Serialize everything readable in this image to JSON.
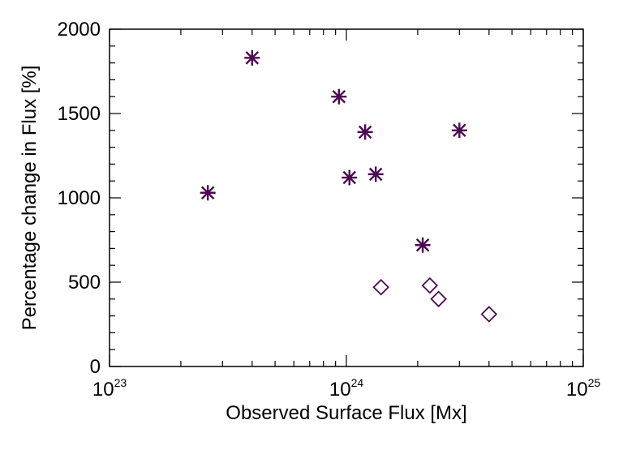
{
  "chart_data": {
    "type": "scatter",
    "xlabel": "Observed Surface Flux [Mx]",
    "ylabel": "Percentage change in Flux [%]",
    "x_scale": "log",
    "xlim": [
      1e+23,
      1e+25
    ],
    "ylim": [
      0,
      2000
    ],
    "x_ticks": [
      {
        "value": 1e+23,
        "base": "10",
        "exp": "23"
      },
      {
        "value": 1e+24,
        "base": "10",
        "exp": "24"
      },
      {
        "value": 1e+25,
        "base": "10",
        "exp": "25"
      }
    ],
    "y_ticks": [
      {
        "value": 0,
        "label": "0"
      },
      {
        "value": 500,
        "label": "500"
      },
      {
        "value": 1000,
        "label": "1000"
      },
      {
        "value": 1500,
        "label": "1500"
      },
      {
        "value": 2000,
        "label": "2000"
      }
    ],
    "grid": false,
    "marker_color": "#4b0a52",
    "series": [
      {
        "marker": "asterisk",
        "points": [
          {
            "x": 2.6e+23,
            "y": 1030
          },
          {
            "x": 4e+23,
            "y": 1830
          },
          {
            "x": 9.3e+23,
            "y": 1600
          },
          {
            "x": 1.03e+24,
            "y": 1120
          },
          {
            "x": 1.2e+24,
            "y": 1390
          },
          {
            "x": 1.33e+24,
            "y": 1140
          },
          {
            "x": 2.1e+24,
            "y": 720
          },
          {
            "x": 3e+24,
            "y": 1400
          }
        ]
      },
      {
        "marker": "diamond",
        "points": [
          {
            "x": 1.4e+24,
            "y": 470
          },
          {
            "x": 2.25e+24,
            "y": 480
          },
          {
            "x": 2.45e+24,
            "y": 400
          },
          {
            "x": 4e+24,
            "y": 310
          }
        ]
      }
    ]
  }
}
